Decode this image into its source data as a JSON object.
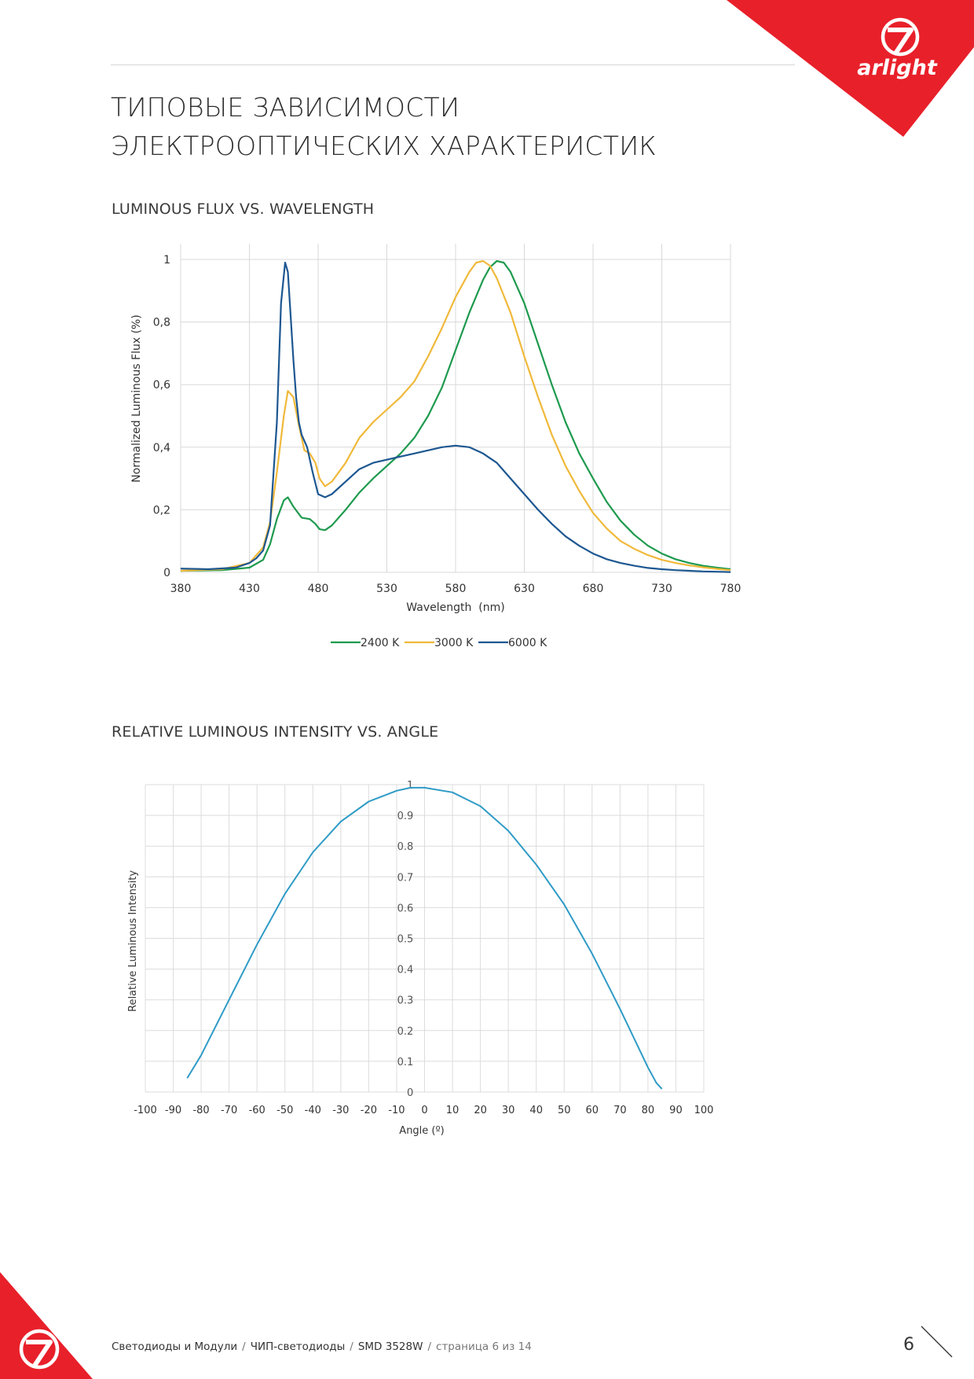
{
  "title": {
    "line1": "ТИПОВЫЕ ЗАВИСИМОСТИ",
    "line2": "ЭЛЕКТРООПТИЧЕСКИХ ХАРАКТЕРИСТИК"
  },
  "brand": {
    "logo_text": "arlight",
    "accent": "#e8202a"
  },
  "footer": {
    "crumb1": "Светодиоды и Модули",
    "crumb2": "ЧИП-светодиоды",
    "crumb3": "SMD 3528W",
    "separator": "/",
    "page_text": "страница 6 из 14",
    "page_number": "6"
  },
  "chart_data": [
    {
      "type": "line",
      "title": "LUMINOUS FLUX VS. WAVELENGTH",
      "xlabel": "Wavelength  (nm)",
      "ylabel": "Normalized Luminous Flux (%)",
      "xlim": [
        380,
        780
      ],
      "ylim": [
        0,
        1
      ],
      "x_ticks": [
        "380",
        "430",
        "480",
        "530",
        "580",
        "630",
        "680",
        "730",
        "780"
      ],
      "y_ticks": [
        "0",
        "0,2",
        "0,4",
        "0,6",
        "0,8",
        "1"
      ],
      "grid": true,
      "legend": "bottom",
      "series": [
        {
          "name": "2400 K",
          "color": "#1e9a4e",
          "x": [
            380,
            410,
            430,
            440,
            445,
            450,
            455,
            458,
            462,
            468,
            474,
            478,
            481,
            485,
            490,
            500,
            510,
            520,
            530,
            540,
            550,
            560,
            570,
            580,
            590,
            600,
            605,
            610,
            615,
            620,
            630,
            640,
            650,
            660,
            670,
            680,
            690,
            700,
            710,
            720,
            730,
            740,
            750,
            760,
            770,
            780
          ],
          "y": [
            0.005,
            0.007,
            0.015,
            0.04,
            0.09,
            0.17,
            0.23,
            0.24,
            0.21,
            0.175,
            0.17,
            0.155,
            0.138,
            0.135,
            0.15,
            0.2,
            0.255,
            0.3,
            0.34,
            0.38,
            0.43,
            0.5,
            0.59,
            0.71,
            0.83,
            0.935,
            0.975,
            0.995,
            0.99,
            0.96,
            0.86,
            0.73,
            0.6,
            0.48,
            0.38,
            0.3,
            0.225,
            0.165,
            0.12,
            0.085,
            0.06,
            0.042,
            0.03,
            0.021,
            0.015,
            0.01
          ]
        },
        {
          "name": "3000 K",
          "color": "#f0b93a",
          "x": [
            380,
            410,
            430,
            440,
            445,
            450,
            455,
            458,
            462,
            466,
            470,
            474,
            478,
            481,
            485,
            490,
            500,
            510,
            520,
            530,
            540,
            550,
            560,
            570,
            580,
            590,
            595,
            600,
            605,
            610,
            620,
            630,
            640,
            650,
            660,
            670,
            680,
            690,
            700,
            710,
            720,
            730,
            740,
            750,
            760,
            770,
            780
          ],
          "y": [
            0.005,
            0.01,
            0.03,
            0.08,
            0.16,
            0.32,
            0.5,
            0.58,
            0.56,
            0.47,
            0.39,
            0.38,
            0.35,
            0.3,
            0.275,
            0.29,
            0.35,
            0.43,
            0.48,
            0.52,
            0.56,
            0.61,
            0.69,
            0.78,
            0.88,
            0.96,
            0.99,
            0.995,
            0.98,
            0.94,
            0.83,
            0.69,
            0.56,
            0.44,
            0.34,
            0.26,
            0.19,
            0.14,
            0.1,
            0.075,
            0.055,
            0.04,
            0.03,
            0.022,
            0.016,
            0.011,
            0.007
          ]
        },
        {
          "name": "6000 K",
          "color": "#1d5791",
          "x": [
            380,
            400,
            420,
            430,
            435,
            440,
            445,
            450,
            453,
            456,
            458,
            460,
            462,
            464,
            466,
            468,
            472,
            476,
            480,
            485,
            490,
            500,
            510,
            520,
            530,
            540,
            550,
            560,
            570,
            580,
            590,
            600,
            610,
            620,
            630,
            640,
            650,
            660,
            670,
            680,
            690,
            700,
            710,
            720,
            730,
            740,
            750,
            760,
            770,
            780
          ],
          "y": [
            0.012,
            0.01,
            0.015,
            0.03,
            0.045,
            0.07,
            0.15,
            0.48,
            0.86,
            0.99,
            0.96,
            0.82,
            0.68,
            0.56,
            0.48,
            0.44,
            0.4,
            0.32,
            0.25,
            0.24,
            0.25,
            0.29,
            0.33,
            0.35,
            0.36,
            0.37,
            0.38,
            0.39,
            0.4,
            0.405,
            0.4,
            0.38,
            0.35,
            0.3,
            0.25,
            0.2,
            0.155,
            0.115,
            0.085,
            0.06,
            0.042,
            0.03,
            0.021,
            0.014,
            0.01,
            0.007,
            0.005,
            0.003,
            0.002,
            0.001
          ]
        }
      ]
    },
    {
      "type": "line",
      "title": "RELATIVE LUMINOUS INTENSITY VS. ANGLE",
      "xlabel": "Angle (º)",
      "ylabel": "Relative Luminous Intensity",
      "xlim": [
        -100,
        100
      ],
      "ylim": [
        0,
        1
      ],
      "x_ticks": [
        "-100",
        "-90",
        "-80",
        "-70",
        "-60",
        "-50",
        "-40",
        "-30",
        "-20",
        "-10",
        "0",
        "10",
        "20",
        "30",
        "40",
        "50",
        "60",
        "70",
        "80",
        "90",
        "100"
      ],
      "y_ticks": [
        "0",
        "0.1",
        "0.2",
        "0.3",
        "0.4",
        "0.5",
        "0.6",
        "0.7",
        "0.8",
        "0.9",
        "1"
      ],
      "grid": true,
      "series": [
        {
          "color": "#2e9bc6",
          "x": [
            -85,
            -80,
            -70,
            -60,
            -50,
            -40,
            -30,
            -20,
            -10,
            -5,
            0,
            10,
            20,
            30,
            40,
            50,
            60,
            70,
            80,
            83,
            85
          ],
          "y": [
            0.045,
            0.12,
            0.3,
            0.48,
            0.645,
            0.78,
            0.88,
            0.945,
            0.98,
            0.99,
            0.99,
            0.975,
            0.93,
            0.85,
            0.74,
            0.61,
            0.45,
            0.27,
            0.08,
            0.03,
            0.01
          ]
        }
      ]
    }
  ]
}
